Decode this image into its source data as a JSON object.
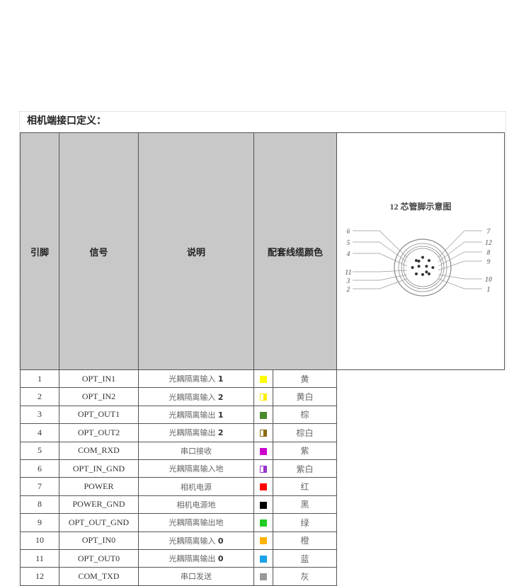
{
  "title": "相机端接口定义：",
  "headers": [
    "引脚",
    "信号",
    "说明",
    "配套线缆颜色"
  ],
  "rows": [
    {
      "pin": "1",
      "signal": "OPT_IN1",
      "desc": "光耦隔离输入",
      "num": "1",
      "color": "黄",
      "swatch": "#ffff00",
      "half": false
    },
    {
      "pin": "2",
      "signal": "OPT_IN2",
      "desc": "光耦隔离输入",
      "num": "2",
      "color": "黄白",
      "swatch": "#ffee00",
      "half": true
    },
    {
      "pin": "3",
      "signal": "OPT_OUT1",
      "desc": "光耦隔离输出",
      "num": "1",
      "color": "棕",
      "swatch": "#4a8a2a",
      "half": false
    },
    {
      "pin": "4",
      "signal": "OPT_OUT2",
      "desc": "光耦隔离输出",
      "num": "2",
      "color": "棕白",
      "swatch": "#8a6a10",
      "half": true
    },
    {
      "pin": "5",
      "signal": "COM_RXD",
      "desc": "串口接收",
      "num": "",
      "color": "紫",
      "swatch": "#cc00cc",
      "half": false
    },
    {
      "pin": "6",
      "signal": "OPT_IN_GND",
      "desc": "光耦隔离输入地",
      "num": "",
      "color": "紫白",
      "swatch": "#9933cc",
      "half": true
    },
    {
      "pin": "7",
      "signal": "POWER",
      "desc": "相机电源",
      "num": "",
      "color": "红",
      "swatch": "#ff0000",
      "half": false
    },
    {
      "pin": "8",
      "signal": "POWER_GND",
      "desc": "相机电源地",
      "num": "",
      "color": "黑",
      "swatch": "#000000",
      "half": false
    },
    {
      "pin": "9",
      "signal": "OPT_OUT_GND",
      "desc": "光耦隔离输出地",
      "num": "",
      "color": "绿",
      "swatch": "#22cc22",
      "half": false
    },
    {
      "pin": "10",
      "signal": "OPT_IN0",
      "desc": "光耦隔离输入",
      "num": "0",
      "color": "橙",
      "swatch": "#ffb300",
      "half": false
    },
    {
      "pin": "11",
      "signal": "OPT_OUT0",
      "desc": "光耦隔离输出",
      "num": "0",
      "color": "蓝",
      "swatch": "#1aa3e8",
      "half": false
    },
    {
      "pin": "12",
      "signal": "COM_TXD",
      "desc": "串口发送",
      "num": "",
      "color": "灰",
      "swatch": "#999999",
      "half": false
    }
  ],
  "diagram": {
    "title": "12 芯管脚示意图",
    "left_labels": [
      "6",
      "5",
      "4",
      "11",
      "3",
      "2"
    ],
    "right_labels": [
      "7",
      "12",
      "8",
      "9",
      "10",
      "1"
    ]
  }
}
